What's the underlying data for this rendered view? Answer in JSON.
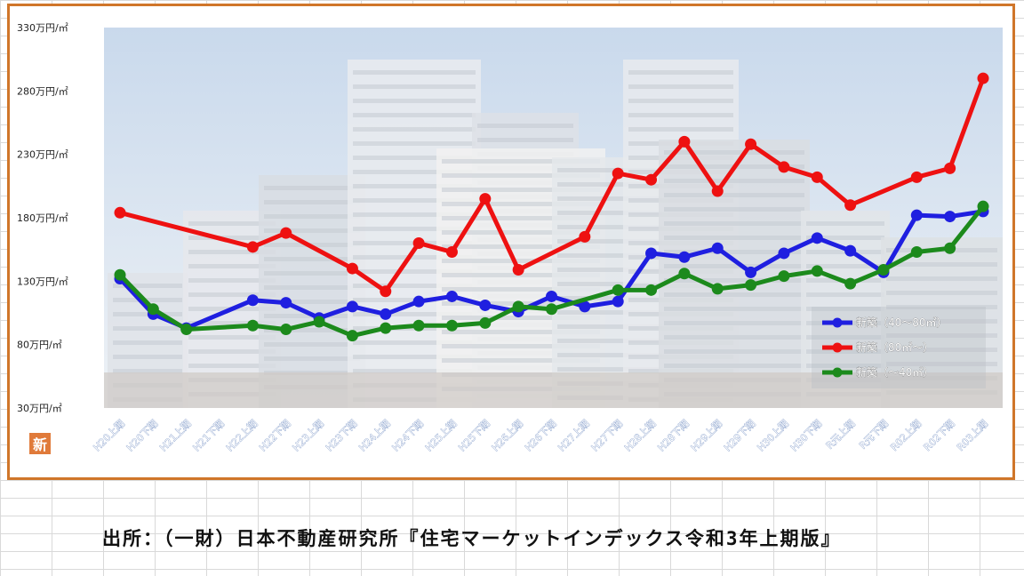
{
  "chart_data": {
    "type": "line",
    "title": "",
    "xlabel": "",
    "ylabel": "",
    "ylim": [
      30,
      330
    ],
    "yticks": [
      "330万円/㎡",
      "280万円/㎡",
      "230万円/㎡",
      "180万円/㎡",
      "130万円/㎡",
      "80万円/㎡",
      "30万円/㎡"
    ],
    "ytick_values": [
      330,
      280,
      230,
      180,
      130,
      80,
      30
    ],
    "categories": [
      "H20上期",
      "H20下期",
      "H21上期",
      "H21下期",
      "H22上期",
      "H22下期",
      "H23上期",
      "H23下期",
      "H24上期",
      "H24下期",
      "H25上期",
      "H25下期",
      "H26上期",
      "H26下期",
      "H27上期",
      "H27下期",
      "H28上期",
      "H28下期",
      "H29上期",
      "H29下期",
      "H30上期",
      "H30下期",
      "R元上期",
      "R元下期",
      "R02上期",
      "R02下期",
      "R03上期"
    ],
    "legend_position": "bottom-right",
    "grid": false,
    "series": [
      {
        "name": "新築（40～80㎡）",
        "color": "#1f1fe0",
        "values": [
          132,
          104,
          93,
          null,
          115,
          113,
          101,
          110,
          104,
          114,
          118,
          111,
          106,
          118,
          110,
          114,
          152,
          149,
          156,
          137,
          152,
          164,
          154,
          137,
          182,
          181,
          185
        ]
      },
      {
        "name": "新築（80㎡～）",
        "color": "#ee1111",
        "values": [
          184,
          null,
          null,
          null,
          157,
          168,
          null,
          140,
          122,
          160,
          153,
          195,
          139,
          null,
          165,
          215,
          210,
          240,
          201,
          238,
          220,
          212,
          190,
          null,
          212,
          219,
          290
        ]
      },
      {
        "name": "新築（～40㎡）",
        "color": "#1c8a1c",
        "values": [
          135,
          108,
          92,
          null,
          95,
          92,
          98,
          87,
          93,
          95,
          95,
          97,
          110,
          108,
          null,
          123,
          123,
          136,
          124,
          127,
          134,
          138,
          128,
          139,
          153,
          156,
          189
        ]
      }
    ]
  },
  "badge": {
    "text": "新"
  },
  "source": {
    "text": "出所：（一財）日本不動産研究所『住宅マーケットインデックス令和3年上期版』"
  },
  "colors": {
    "frame": "#d0762a",
    "badge": "#e07a3a"
  }
}
